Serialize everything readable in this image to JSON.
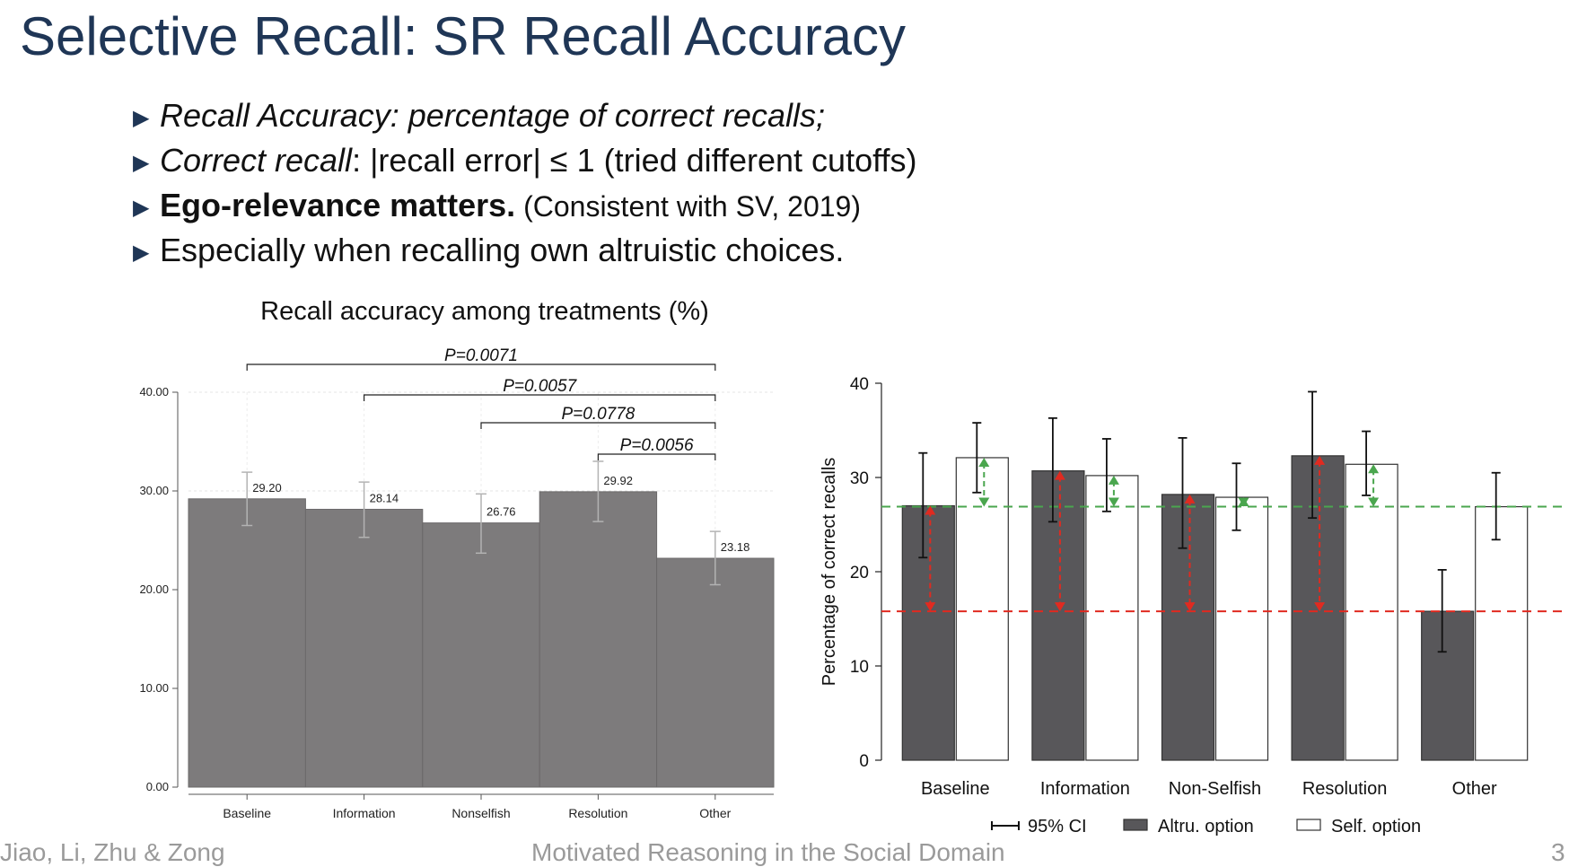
{
  "slide": {
    "title": "Selective Recall: SR Recall Accuracy",
    "bullets": [
      {
        "parts": [
          {
            "text": "Recall Accuracy: percentage of correct recalls;",
            "style": "italic"
          }
        ]
      },
      {
        "parts": [
          {
            "text": "Correct recall",
            "style": "italic"
          },
          {
            "text": ": |recall error| ≤ 1 (tried different cutoffs)",
            "style": "normal"
          }
        ]
      },
      {
        "parts": [
          {
            "text": "Ego-relevance matters.",
            "style": "bold"
          },
          {
            "text": " (Consistent with SV, 2019)",
            "style": "small"
          }
        ]
      },
      {
        "parts": [
          {
            "text": "Especially when recalling own altruistic choices.",
            "style": "normal"
          }
        ]
      }
    ],
    "footer": {
      "left": "Jiao, Li, Zhu & Zong",
      "center": "Motivated Reasoning in the Social Domain",
      "page": "3"
    }
  },
  "chart_data": [
    {
      "type": "bar",
      "title": "Recall accuracy among treatments (%)",
      "categories": [
        "Baseline",
        "Information",
        "Nonselfish",
        "Resolution",
        "Other"
      ],
      "values": [
        29.2,
        28.14,
        26.76,
        29.92,
        23.18
      ],
      "value_labels": [
        "29.20",
        "28.14",
        "26.76",
        "29.92",
        "23.18"
      ],
      "error_bars": [
        [
          26.5,
          31.9
        ],
        [
          25.3,
          30.9
        ],
        [
          23.7,
          29.7
        ],
        [
          26.9,
          33.0
        ],
        [
          20.5,
          25.9
        ]
      ],
      "ylim": [
        0,
        40
      ],
      "yticks": [
        0,
        10,
        20,
        30,
        40
      ],
      "ytick_labels": [
        "0.00",
        "10.00",
        "20.00",
        "30.00",
        "40.00"
      ],
      "xlabel": "",
      "ylabel": "",
      "bar_color": "#7d7b7c",
      "grid": true,
      "comparisons": [
        {
          "from": "Baseline",
          "to": "Other",
          "label": "P=0.0071"
        },
        {
          "from": "Information",
          "to": "Other",
          "label": "P=0.0057"
        },
        {
          "from": "Nonselfish",
          "to": "Other",
          "label": "P=0.0778"
        },
        {
          "from": "Resolution",
          "to": "Other",
          "label": "P=0.0056"
        }
      ]
    },
    {
      "type": "bar",
      "title": "",
      "categories": [
        "Baseline",
        "Information",
        "Non-Selfish",
        "Resolution",
        "Other"
      ],
      "series": [
        {
          "name": "Altru. option",
          "color": "#58575a",
          "values": [
            27.0,
            30.7,
            28.2,
            32.3,
            15.8
          ],
          "ci": [
            [
              21.5,
              32.6
            ],
            [
              25.3,
              36.3
            ],
            [
              22.5,
              34.2
            ],
            [
              25.7,
              39.1
            ],
            [
              11.5,
              20.2
            ]
          ]
        },
        {
          "name": "Self. option",
          "color": "#ffffff",
          "values": [
            32.1,
            30.2,
            27.9,
            31.4,
            26.9
          ],
          "ci": [
            [
              28.4,
              35.8
            ],
            [
              26.4,
              34.1
            ],
            [
              24.4,
              31.5
            ],
            [
              28.1,
              34.9
            ],
            [
              23.4,
              30.5
            ]
          ]
        }
      ],
      "ylabel": "Percentage of correct recalls",
      "xlabel": "",
      "ylim": [
        0,
        40
      ],
      "yticks": [
        0,
        10,
        20,
        30,
        40
      ],
      "legend": {
        "position": "bottom",
        "ci_label": "95% CI"
      },
      "reference_lines": [
        {
          "value": 26.9,
          "color": "#4aa64e"
        },
        {
          "value": 15.8,
          "color": "#e02a20"
        }
      ],
      "gap_arrows": [
        {
          "category": "Baseline",
          "series": "Altru. option",
          "from": 15.8,
          "to": 27.0,
          "color": "#e02a20"
        },
        {
          "category": "Baseline",
          "series": "Self. option",
          "from": 26.9,
          "to": 32.1,
          "color": "#4aa64e"
        },
        {
          "category": "Information",
          "series": "Altru. option",
          "from": 15.8,
          "to": 30.7,
          "color": "#e02a20"
        },
        {
          "category": "Information",
          "series": "Self. option",
          "from": 26.9,
          "to": 30.2,
          "color": "#4aa64e"
        },
        {
          "category": "Non-Selfish",
          "series": "Altru. option",
          "from": 15.8,
          "to": 28.2,
          "color": "#e02a20"
        },
        {
          "category": "Non-Selfish",
          "series": "Self. option",
          "from": 26.9,
          "to": 27.9,
          "color": "#4aa64e"
        },
        {
          "category": "Resolution",
          "series": "Altru. option",
          "from": 15.8,
          "to": 32.3,
          "color": "#e02a20"
        },
        {
          "category": "Resolution",
          "series": "Self. option",
          "from": 26.9,
          "to": 31.4,
          "color": "#4aa64e"
        }
      ]
    }
  ]
}
